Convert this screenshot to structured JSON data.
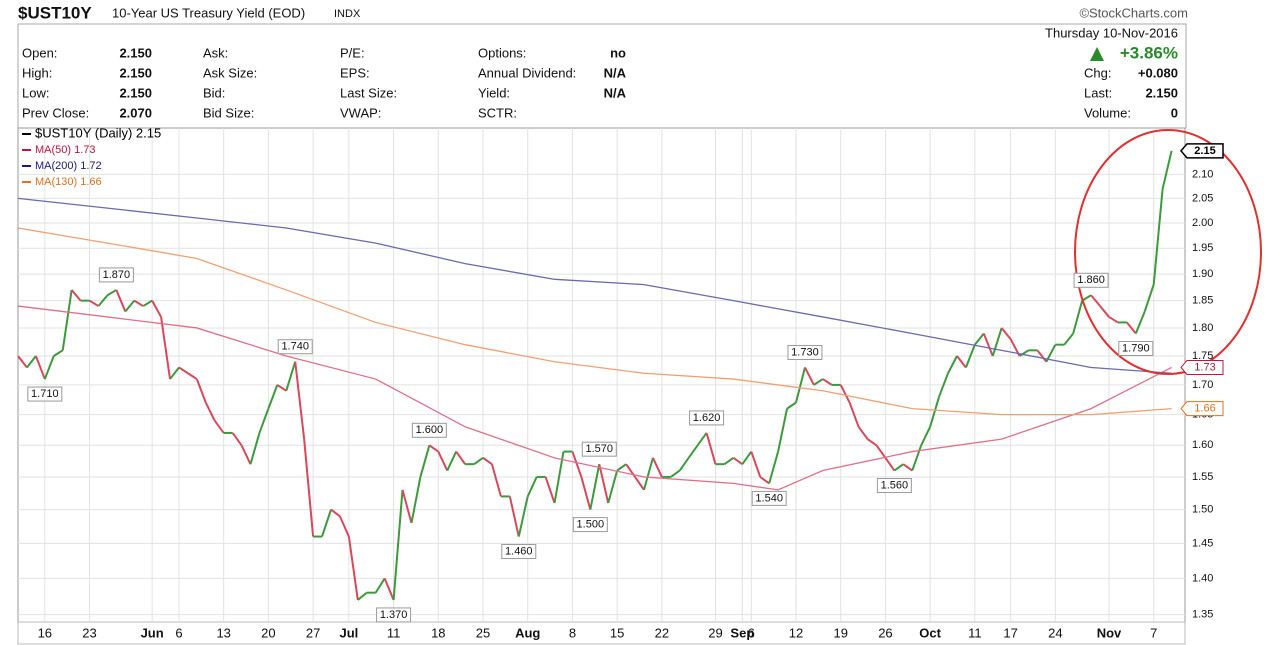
{
  "chart_data": {
    "type": "line",
    "title": "$UST10Y",
    "subtitle": "10-Year US Treasury Yield (EOD)",
    "exchange": "INDX",
    "source": "©StockCharts.com",
    "date": "Thursday  10-Nov-2016",
    "change_percent": "+3.86%",
    "quote_columns": [
      [
        {
          "label": "Open:",
          "value": "2.150"
        },
        {
          "label": "High:",
          "value": "2.150"
        },
        {
          "label": "Low:",
          "value": "2.150"
        },
        {
          "label": "Prev Close:",
          "value": "2.070"
        }
      ],
      [
        {
          "label": "Ask:"
        },
        {
          "label": "Ask Size:"
        },
        {
          "label": "Bid:"
        },
        {
          "label": "Bid Size:"
        }
      ],
      [
        {
          "label": "P/E:"
        },
        {
          "label": "EPS:"
        },
        {
          "label": "Last Size:"
        },
        {
          "label": "VWAP:"
        }
      ],
      [
        {
          "label": "Options:",
          "value": "no"
        },
        {
          "label": "Annual Dividend:",
          "value": "N/A"
        },
        {
          "label": "Yield:",
          "value": "N/A"
        },
        {
          "label": "SCTR:"
        }
      ]
    ],
    "quote_right": [
      {
        "label": "Chg:",
        "value": "+0.080"
      },
      {
        "label": "Last:",
        "value": "2.150"
      },
      {
        "label": "Volume:",
        "value": "0"
      }
    ],
    "log_scale": true,
    "grid": true,
    "xlim": [
      0,
      130.5
    ],
    "ylim": [
      1.34,
      2.2
    ],
    "xticks": [
      {
        "value": 3,
        "label": "16"
      },
      {
        "value": 8,
        "label": "23"
      },
      {
        "value": 15,
        "label": "Jun"
      },
      {
        "value": 18,
        "label": "6"
      },
      {
        "value": 23,
        "label": "13"
      },
      {
        "value": 28,
        "label": "20"
      },
      {
        "value": 33,
        "label": "27"
      },
      {
        "value": 37,
        "label": "Jul"
      },
      {
        "value": 42,
        "label": "11"
      },
      {
        "value": 47,
        "label": "18"
      },
      {
        "value": 52,
        "label": "25"
      },
      {
        "value": 57,
        "label": "Aug"
      },
      {
        "value": 62,
        "label": "8"
      },
      {
        "value": 67,
        "label": "15"
      },
      {
        "value": 72,
        "label": "22"
      },
      {
        "value": 78,
        "label": "29"
      },
      {
        "value": 81,
        "label": "Sep"
      },
      {
        "value": 82,
        "label": "6"
      },
      {
        "value": 87,
        "label": "12"
      },
      {
        "value": 92,
        "label": "19"
      },
      {
        "value": 97,
        "label": "26"
      },
      {
        "value": 102,
        "label": "Oct"
      },
      {
        "value": 107,
        "label": "11"
      },
      {
        "value": 111,
        "label": "17"
      },
      {
        "value": 116,
        "label": "24"
      },
      {
        "value": 122,
        "label": "Nov"
      },
      {
        "value": 127,
        "label": "7"
      }
    ],
    "yticks": [
      1.35,
      {
        "value": 1.4,
        "label": "1.40"
      },
      1.45,
      {
        "value": 1.5,
        "label": "1.50"
      },
      1.55,
      {
        "value": 1.6,
        "label": "1.60"
      },
      1.65,
      {
        "value": 1.7,
        "label": "1.70"
      },
      1.75,
      {
        "value": 1.8,
        "label": "1.80"
      },
      1.85,
      {
        "value": 1.9,
        "label": "1.90"
      },
      1.95,
      {
        "value": 2.0,
        "label": "2.00"
      },
      2.05,
      {
        "value": 2.1,
        "label": "2.10"
      }
    ],
    "series": [
      {
        "name": "$UST10Y (Daily) 2.15",
        "color": "#000000",
        "up_color": "#3c9a3c",
        "down_color": "#d9485a",
        "last_label": "2.15",
        "values": [
          1.75,
          1.73,
          1.75,
          1.71,
          1.75,
          1.76,
          1.87,
          1.85,
          1.85,
          1.84,
          1.86,
          1.87,
          1.83,
          1.85,
          1.84,
          1.85,
          1.82,
          1.71,
          1.73,
          1.72,
          1.71,
          1.67,
          1.64,
          1.62,
          1.62,
          1.6,
          1.57,
          1.62,
          1.66,
          1.7,
          1.69,
          1.74,
          1.61,
          1.46,
          1.46,
          1.5,
          1.49,
          1.46,
          1.37,
          1.38,
          1.38,
          1.4,
          1.37,
          1.53,
          1.48,
          1.55,
          1.6,
          1.59,
          1.56,
          1.59,
          1.57,
          1.57,
          1.58,
          1.57,
          1.52,
          1.52,
          1.46,
          1.52,
          1.55,
          1.55,
          1.51,
          1.59,
          1.59,
          1.55,
          1.5,
          1.57,
          1.51,
          1.56,
          1.57,
          1.55,
          1.53,
          1.58,
          1.55,
          1.55,
          1.56,
          1.58,
          1.6,
          1.62,
          1.57,
          1.57,
          1.58,
          1.57,
          1.59,
          1.55,
          1.54,
          1.59,
          1.66,
          1.67,
          1.73,
          1.7,
          1.71,
          1.7,
          1.7,
          1.67,
          1.63,
          1.61,
          1.6,
          1.58,
          1.56,
          1.57,
          1.56,
          1.6,
          1.63,
          1.68,
          1.72,
          1.75,
          1.73,
          1.77,
          1.79,
          1.75,
          1.8,
          1.78,
          1.75,
          1.76,
          1.76,
          1.74,
          1.77,
          1.77,
          1.79,
          1.85,
          1.86,
          1.84,
          1.82,
          1.81,
          1.81,
          1.79,
          1.83,
          1.88,
          2.07,
          2.15
        ]
      },
      {
        "name": "MA(50) 1.73",
        "color": "#e0708a",
        "text_color": "#c0143c",
        "last_label": "1.73",
        "x": [
          0,
          10,
          20,
          30,
          40,
          50,
          60,
          70,
          80,
          85,
          90,
          100,
          110,
          120,
          129
        ],
        "values": [
          1.84,
          1.82,
          1.8,
          1.75,
          1.71,
          1.63,
          1.58,
          1.55,
          1.54,
          1.53,
          1.56,
          1.59,
          1.61,
          1.66,
          1.73
        ]
      },
      {
        "name": "MA(200) 1.72",
        "color": "#6a6ab0",
        "text_color": "#1a1a7a",
        "x": [
          0,
          10,
          20,
          30,
          40,
          50,
          60,
          70,
          80,
          90,
          100,
          110,
          120,
          129
        ],
        "values": [
          2.05,
          2.03,
          2.01,
          1.99,
          1.96,
          1.92,
          1.89,
          1.88,
          1.85,
          1.82,
          1.79,
          1.76,
          1.73,
          1.72
        ]
      },
      {
        "name": "MA(130) 1.66",
        "color": "#f0a070",
        "text_color": "#e07020",
        "last_label": "1.66",
        "x": [
          0,
          10,
          20,
          30,
          40,
          50,
          60,
          70,
          80,
          90,
          100,
          110,
          120,
          129
        ],
        "values": [
          1.99,
          1.96,
          1.93,
          1.87,
          1.81,
          1.77,
          1.74,
          1.72,
          1.71,
          1.69,
          1.66,
          1.65,
          1.65,
          1.66
        ]
      }
    ],
    "annotations": [
      {
        "x": 3,
        "label": "1.710",
        "position": "below"
      },
      {
        "x": 11,
        "label": "1.870",
        "position": "above"
      },
      {
        "x": 31,
        "label": "1.740",
        "position": "above"
      },
      {
        "x": 42,
        "label": "1.370",
        "position": "below"
      },
      {
        "x": 46,
        "label": "1.600",
        "position": "above"
      },
      {
        "x": 56,
        "label": "1.460",
        "position": "below"
      },
      {
        "x": 64,
        "label": "1.500",
        "position": "below"
      },
      {
        "x": 65,
        "label": "1.570",
        "position": "above"
      },
      {
        "x": 77,
        "label": "1.620",
        "position": "above"
      },
      {
        "x": 84,
        "label": "1.540",
        "position": "below"
      },
      {
        "x": 88,
        "label": "1.730",
        "position": "above"
      },
      {
        "x": 98,
        "label": "1.560",
        "position": "below"
      },
      {
        "x": 120,
        "label": "1.860",
        "position": "above"
      },
      {
        "x": 125,
        "label": "1.790",
        "position": "below"
      }
    ]
  }
}
